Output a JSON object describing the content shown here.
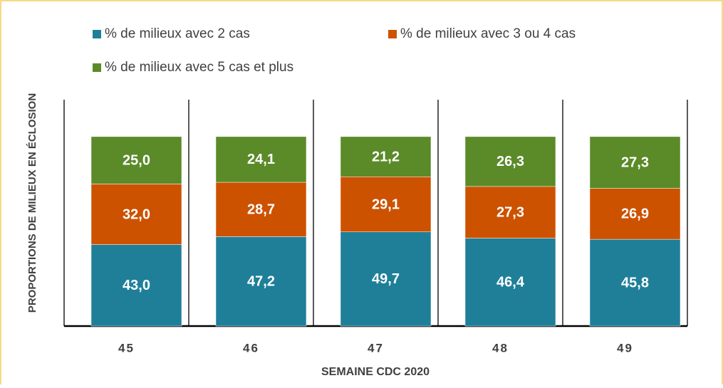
{
  "chart_data": {
    "type": "stacked_bar",
    "categories": [
      "45",
      "46",
      "47",
      "48",
      "49"
    ],
    "series": [
      {
        "name": "% de milieux avec 2 cas",
        "color": "#1f7f99",
        "values": [
          43.0,
          47.2,
          49.7,
          46.4,
          45.8
        ],
        "value_labels": [
          "43,0",
          "47,2",
          "49,7",
          "46,4",
          "45,8"
        ]
      },
      {
        "name": "% de milieux avec 3 ou 4 cas",
        "color": "#cc5200",
        "values": [
          32.0,
          28.7,
          29.1,
          27.3,
          26.9
        ],
        "value_labels": [
          "32,0",
          "28,7",
          "29,1",
          "27,3",
          "26,9"
        ]
      },
      {
        "name": "% de milieux avec 5 cas et plus",
        "color": "#5b8a29",
        "values": [
          25.0,
          24.1,
          21.2,
          26.3,
          27.3
        ],
        "value_labels": [
          "25,0",
          "24,1",
          "21,2",
          "26,3",
          "27,3"
        ]
      }
    ],
    "x_label": "SEMAINE CDC 2020",
    "y_label": "PROPORTIONS DE MILIEUX EN ÉCLOSION",
    "ylim": [
      0,
      119.5
    ]
  }
}
